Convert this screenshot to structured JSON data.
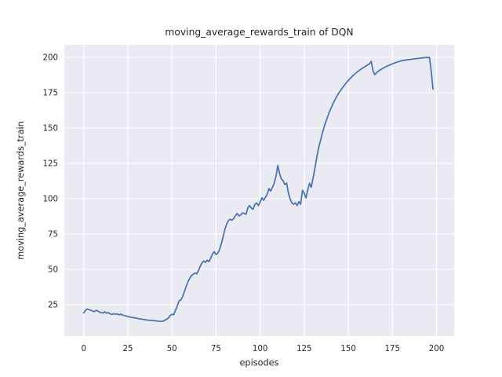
{
  "figure": {
    "background_color": "#ffffff"
  },
  "chart_data": {
    "type": "line",
    "title": "moving_average_rewards_train of DQN",
    "xlabel": "episodes",
    "ylabel": "moving_average_rewards_train",
    "legend": "none",
    "grid": true,
    "xlim": [
      -11,
      210
    ],
    "ylim": [
      2.8,
      208.9
    ],
    "xticks": [
      0,
      25,
      50,
      75,
      100,
      125,
      150,
      175,
      200
    ],
    "yticks": [
      25,
      50,
      75,
      100,
      125,
      150,
      175,
      200
    ],
    "x_start": 0,
    "x_step": 1,
    "series": [
      {
        "name": "moving_average_rewards_train",
        "color": "#4c72b0",
        "values": [
          19.3,
          21.0,
          22.0,
          21.5,
          21.2,
          20.5,
          20.2,
          21.0,
          20.6,
          19.8,
          19.4,
          19.2,
          20.0,
          19.0,
          19.4,
          18.6,
          18.2,
          18.7,
          18.3,
          18.5,
          17.9,
          18.4,
          17.7,
          17.4,
          17.1,
          16.7,
          16.4,
          16.1,
          15.9,
          15.7,
          15.5,
          15.2,
          15.0,
          14.8,
          14.6,
          14.4,
          14.2,
          14.1,
          14.0,
          13.9,
          13.8,
          13.6,
          13.5,
          13.3,
          13.2,
          13.4,
          14.0,
          14.8,
          15.6,
          17.4,
          18.3,
          17.9,
          21.1,
          23.9,
          27.8,
          28.2,
          30.6,
          34.0,
          37.8,
          41.0,
          43.5,
          45.5,
          46.5,
          47.5,
          46.8,
          49.0,
          52.0,
          54.5,
          56.0,
          55.0,
          56.5,
          55.5,
          58.0,
          61.0,
          62.5,
          60.5,
          61.5,
          64.0,
          68.0,
          73.0,
          78.0,
          82.0,
          84.5,
          85.5,
          84.8,
          85.9,
          88.0,
          89.6,
          87.8,
          88.5,
          90.0,
          89.6,
          89.0,
          93.3,
          95.2,
          93.3,
          92.6,
          96.1,
          97.0,
          95.2,
          97.5,
          100.7,
          98.9,
          101.0,
          103.0,
          107.2,
          105.4,
          108.2,
          111.0,
          116.0,
          123.5,
          118.0,
          114.0,
          112.8,
          110.0,
          111.0,
          104.4,
          99.8,
          97.0,
          96.1,
          97.0,
          95.2,
          97.9,
          96.1,
          106.0,
          104.0,
          100.5,
          106.0,
          111.0,
          108.0,
          114.5,
          121.0,
          128.5,
          135.0,
          140.0,
          145.0,
          149.5,
          153.5,
          157.0,
          160.5,
          163.5,
          166.3,
          169.0,
          171.3,
          173.5,
          175.5,
          177.3,
          179.0,
          180.7,
          182.2,
          183.6,
          185.0,
          186.3,
          187.5,
          188.6,
          189.6,
          190.6,
          191.5,
          192.3,
          193.1,
          193.9,
          194.7,
          195.5,
          197.1,
          190.5,
          187.8,
          189.0,
          190.3,
          191.0,
          191.8,
          192.5,
          193.2,
          193.8,
          194.3,
          194.9,
          195.4,
          195.9,
          196.4,
          196.8,
          197.1,
          197.5,
          197.8,
          198.0,
          198.2,
          198.4,
          198.5,
          198.7,
          198.9,
          199.0,
          199.2,
          199.3,
          199.5,
          199.6,
          199.8,
          199.9,
          199.9,
          199.9,
          190.0,
          177.5
        ]
      }
    ],
    "style": {
      "axes_background": "#eaeaf2",
      "grid_color": "#ffffff",
      "text_color": "#262626",
      "line_width": 1.75,
      "grid_width": 1.1
    }
  }
}
